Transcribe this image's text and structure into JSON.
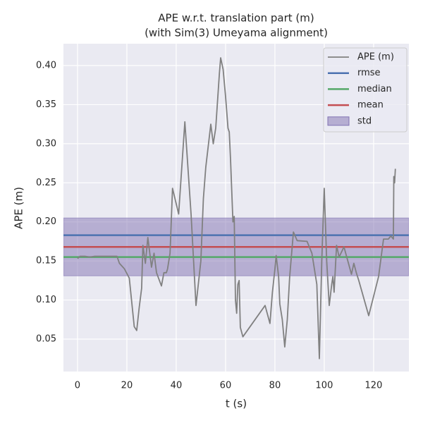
{
  "chart_data": {
    "type": "line",
    "title": "APE w.r.t. translation part (m)",
    "subtitle": "(with Sim(3) Umeyama alignment)",
    "xlabel": "t (s)",
    "ylabel": "APE (m)",
    "xlim": [
      -5.7,
      134.3
    ],
    "ylim": [
      0.0085,
      0.428
    ],
    "xticks": [
      0,
      20,
      40,
      60,
      80,
      100,
      120
    ],
    "yticks": [
      0.05,
      {
        "value": 0.1,
        "label": "0.10"
      },
      0.15,
      {
        "value": 0.2,
        "label": "0.20"
      },
      0.25,
      {
        "value": 0.3,
        "label": "0.30"
      },
      0.35,
      {
        "value": 0.4,
        "label": "0.40"
      }
    ],
    "grid": true,
    "legend": "upper right",
    "series": [
      {
        "name": "APE (m)",
        "color": "#808080",
        "x": [
          0,
          1,
          3,
          5,
          7,
          10,
          16,
          17,
          19,
          21,
          23,
          24,
          25,
          26,
          26.5,
          27.5,
          28.5,
          30,
          31,
          32,
          34,
          35,
          36,
          36.5,
          37.5,
          38.5,
          41,
          43.5,
          46,
          48,
          50,
          51,
          52,
          54,
          55,
          56,
          57.5,
          58,
          59,
          60,
          61,
          61.5,
          62,
          63,
          63.5,
          64,
          64.5,
          65,
          65.5,
          66,
          67,
          76,
          78,
          79,
          80,
          80.5,
          81.5,
          82,
          83,
          84,
          85,
          86,
          87.5,
          89,
          93,
          95,
          96,
          97,
          98,
          99,
          100,
          101,
          102,
          103,
          103.5,
          104,
          105,
          106,
          108,
          110,
          111,
          112,
          113,
          114,
          118,
          122,
          124,
          126,
          127,
          128,
          128.2,
          128.5,
          128.8
        ],
        "values": [
          0.153,
          0.156,
          0.156,
          0.155,
          0.156,
          0.156,
          0.156,
          0.147,
          0.14,
          0.128,
          0.066,
          0.061,
          0.09,
          0.115,
          0.17,
          0.147,
          0.18,
          0.142,
          0.16,
          0.135,
          0.118,
          0.135,
          0.135,
          0.14,
          0.16,
          0.243,
          0.21,
          0.328,
          0.21,
          0.093,
          0.15,
          0.23,
          0.27,
          0.325,
          0.3,
          0.32,
          0.39,
          0.41,
          0.395,
          0.36,
          0.32,
          0.315,
          0.28,
          0.2,
          0.207,
          0.1,
          0.083,
          0.12,
          0.125,
          0.065,
          0.053,
          0.093,
          0.07,
          0.11,
          0.14,
          0.157,
          0.13,
          0.095,
          0.075,
          0.04,
          0.075,
          0.13,
          0.187,
          0.176,
          0.175,
          0.16,
          0.14,
          0.12,
          0.025,
          0.15,
          0.243,
          0.15,
          0.093,
          0.12,
          0.13,
          0.11,
          0.17,
          0.155,
          0.168,
          0.145,
          0.133,
          0.147,
          0.135,
          0.125,
          0.08,
          0.13,
          0.178,
          0.178,
          0.182,
          0.178,
          0.258,
          0.25,
          0.268
        ]
      }
    ],
    "stats": [
      {
        "name": "rmse",
        "color": "#4c72b0",
        "value": 0.183
      },
      {
        "name": "median",
        "color": "#55a868",
        "value": 0.155
      },
      {
        "name": "mean",
        "color": "#c44e52",
        "value": 0.168
      },
      {
        "name": "std",
        "color": "#8172b2",
        "value": 0.037
      }
    ]
  }
}
